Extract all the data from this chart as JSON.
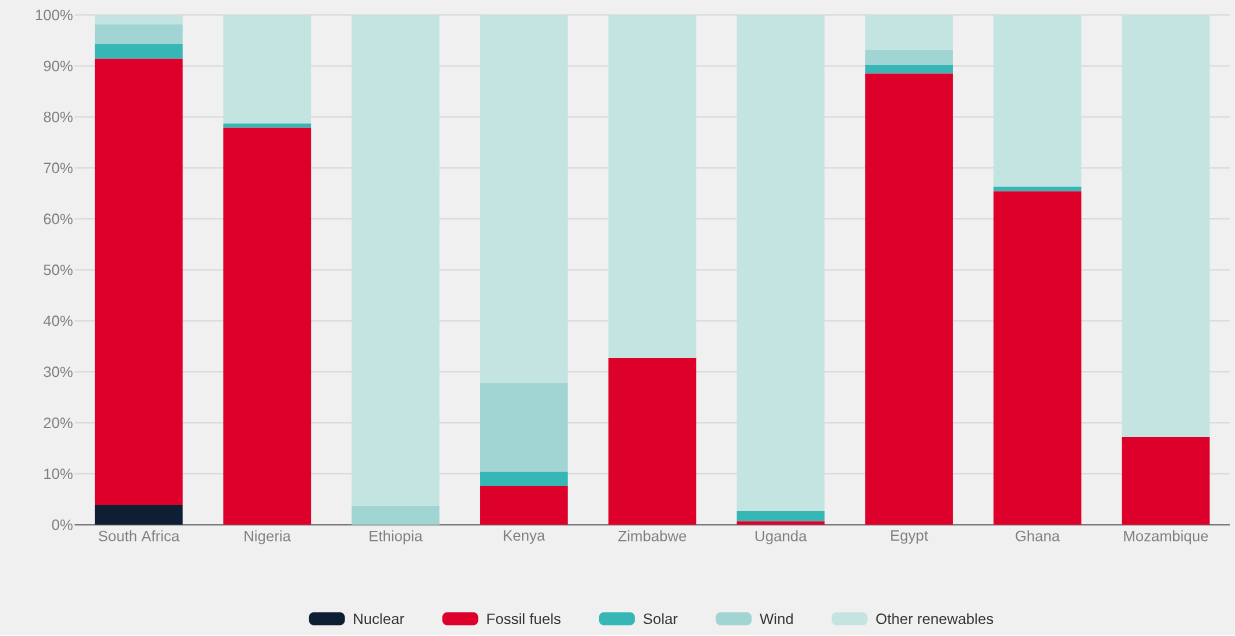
{
  "chart_data": {
    "type": "bar",
    "stacked": true,
    "categories": [
      "South Africa",
      "Nigeria",
      "Ethiopia",
      "Kenya",
      "Zimbabwe",
      "Uganda",
      "Egypt",
      "Ghana",
      "Mozambique"
    ],
    "series": [
      {
        "name": "Nuclear",
        "color": "#0e1f33",
        "values": [
          3.9,
          0,
          0,
          0,
          0,
          0,
          0,
          0,
          0
        ]
      },
      {
        "name": "Fossil fuels",
        "color": "#dc002a",
        "values": [
          87.5,
          77.9,
          0,
          7.6,
          32.7,
          0.7,
          88.5,
          65.4,
          17.2
        ]
      },
      {
        "name": "Solar",
        "color": "#36b6b5",
        "values": [
          2.9,
          0.8,
          0,
          2.8,
          0,
          2.0,
          1.7,
          0.9,
          0
        ]
      },
      {
        "name": "Wind",
        "color": "#a0d5d3",
        "values": [
          3.9,
          0,
          3.7,
          17.4,
          0,
          0,
          3.0,
          0,
          0
        ]
      },
      {
        "name": "Other renewables",
        "color": "#c4e4e2",
        "values": [
          1.8,
          21.3,
          96.3,
          72.2,
          67.3,
          97.3,
          6.8,
          33.7,
          82.8
        ]
      }
    ],
    "ylim": [
      0,
      100
    ],
    "yticks": [
      {
        "value": 0,
        "label": "0%"
      },
      {
        "value": 10,
        "label": "10%"
      },
      {
        "value": 20,
        "label": "20%"
      },
      {
        "value": 30,
        "label": "30%"
      },
      {
        "value": 40,
        "label": "40%"
      },
      {
        "value": 50,
        "label": "50%"
      },
      {
        "value": 60,
        "label": "60%"
      },
      {
        "value": 70,
        "label": "70%"
      },
      {
        "value": 80,
        "label": "80%"
      },
      {
        "value": 90,
        "label": "90%"
      },
      {
        "value": 100,
        "label": "100%"
      }
    ],
    "grid": "y",
    "legend": "bottom"
  }
}
